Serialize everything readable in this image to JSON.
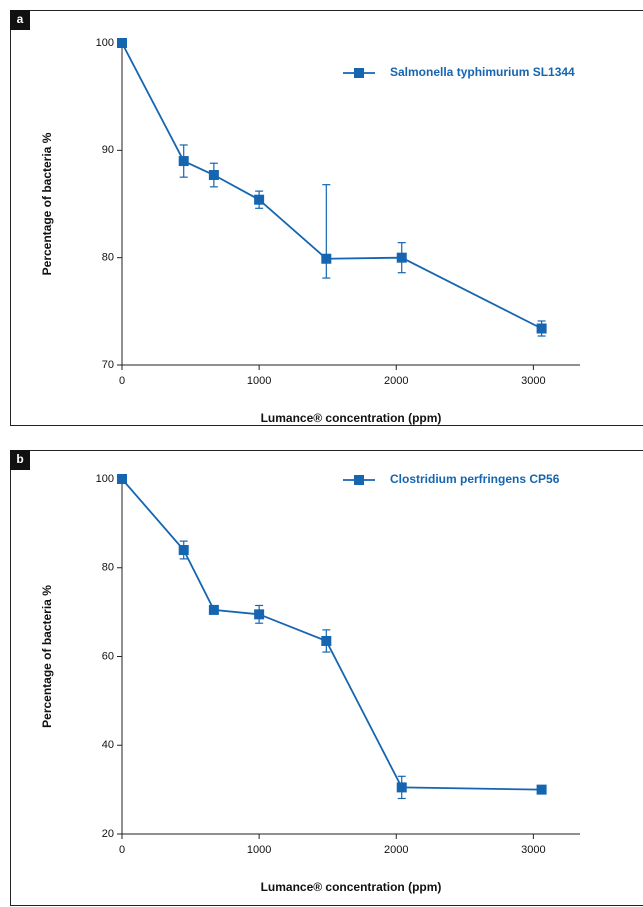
{
  "chart_data": [
    {
      "type": "line",
      "panel_label": "a",
      "ylabel": "Percentage of bacteria %",
      "xlabel": "Lumance® concentration (ppm)",
      "x": [
        0,
        450,
        670,
        1000,
        1490,
        2040,
        3060
      ],
      "series": [
        {
          "name": "Salmonella typhimurium SL1344",
          "color": "#1565b0",
          "values": [
            100,
            89.0,
            87.7,
            85.4,
            79.9,
            80.0,
            73.4
          ],
          "err_minus": [
            0,
            1.5,
            1.1,
            0.8,
            1.8,
            1.4,
            0.7
          ],
          "err_plus": [
            0,
            1.5,
            1.1,
            0.8,
            6.9,
            1.4,
            0.7
          ]
        }
      ],
      "xlim": [
        0,
        3340
      ],
      "xticks": [
        0,
        1000,
        2000,
        3000
      ],
      "ylim": [
        70,
        100
      ],
      "yticks": [
        70,
        80,
        90,
        100
      ]
    },
    {
      "type": "line",
      "panel_label": "b",
      "ylabel": "Percentage of bacteria %",
      "xlabel": "Lumance® concentration (ppm)",
      "x": [
        0,
        450,
        670,
        1000,
        1490,
        2040,
        3060
      ],
      "series": [
        {
          "name": "Clostridium perfringens CP56",
          "color": "#1565b0",
          "values": [
            100,
            84,
            70.5,
            69.5,
            63.5,
            30.5,
            30.0
          ],
          "err_minus": [
            0,
            2,
            0,
            2,
            2.5,
            2.5,
            0
          ],
          "err_plus": [
            0,
            2,
            0,
            2,
            2.5,
            2.5,
            0
          ]
        }
      ],
      "xlim": [
        0,
        3340
      ],
      "xticks": [
        0,
        1000,
        2000,
        3000
      ],
      "ylim": [
        20,
        100
      ],
      "yticks": [
        20,
        40,
        60,
        80,
        100
      ]
    }
  ]
}
